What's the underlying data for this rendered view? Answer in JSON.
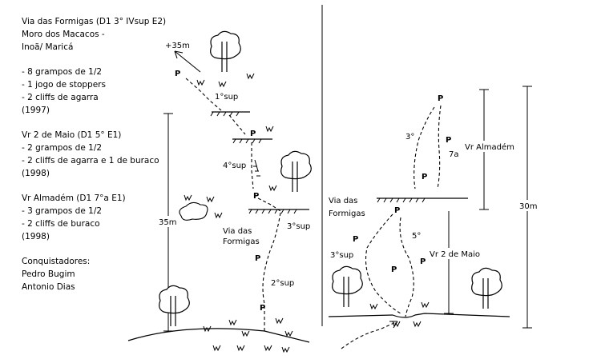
{
  "route_info": {
    "title": "Via das Formigas (D1 3° IVsup E2)",
    "location_line1": "Moro dos Macacos  -",
    "location_line2": "Inoã/ Maricá",
    "gear": [
      "- 8 grampos de 1/2",
      "- 1 jogo de stoppers",
      "- 2 cliffs de agarra",
      "(1997)"
    ],
    "variant1": [
      "Vr 2 de Maio (D1 5° E1)",
      "- 2 grampos de 1/2",
      "- 2 cliffs de agarra e 1 de buraco",
      "(1998)"
    ],
    "variant2": [
      "Vr Almadém (D1 7°a E1)",
      "- 3 grampos de 1/2",
      "- 2 cliffs de buraco",
      "(1998)"
    ],
    "conquerors_label": "Conquistadores:",
    "conquerors": [
      "Pedro Bugim",
      "Antonio Dias"
    ]
  },
  "left_topo": {
    "top_exit": "+35m",
    "grade_1": "1°sup",
    "grade_2": "4°sup",
    "grade_3": "3°sup",
    "grade_4": "2°sup",
    "route_label_line1": "Via das",
    "route_label_line2": "Formigas",
    "height": "35m",
    "bolt": "P"
  },
  "right_topo": {
    "grade_top": "3°",
    "grade_7a": "7a",
    "almadem_label": "Vr Almadém",
    "route_label_line1": "Via das",
    "route_label_line2": "Formigas",
    "grade_5": "5°",
    "grade_3sup": "3°sup",
    "maio_label": "Vr 2 de Maio",
    "height": "30m",
    "bolt": "P"
  }
}
